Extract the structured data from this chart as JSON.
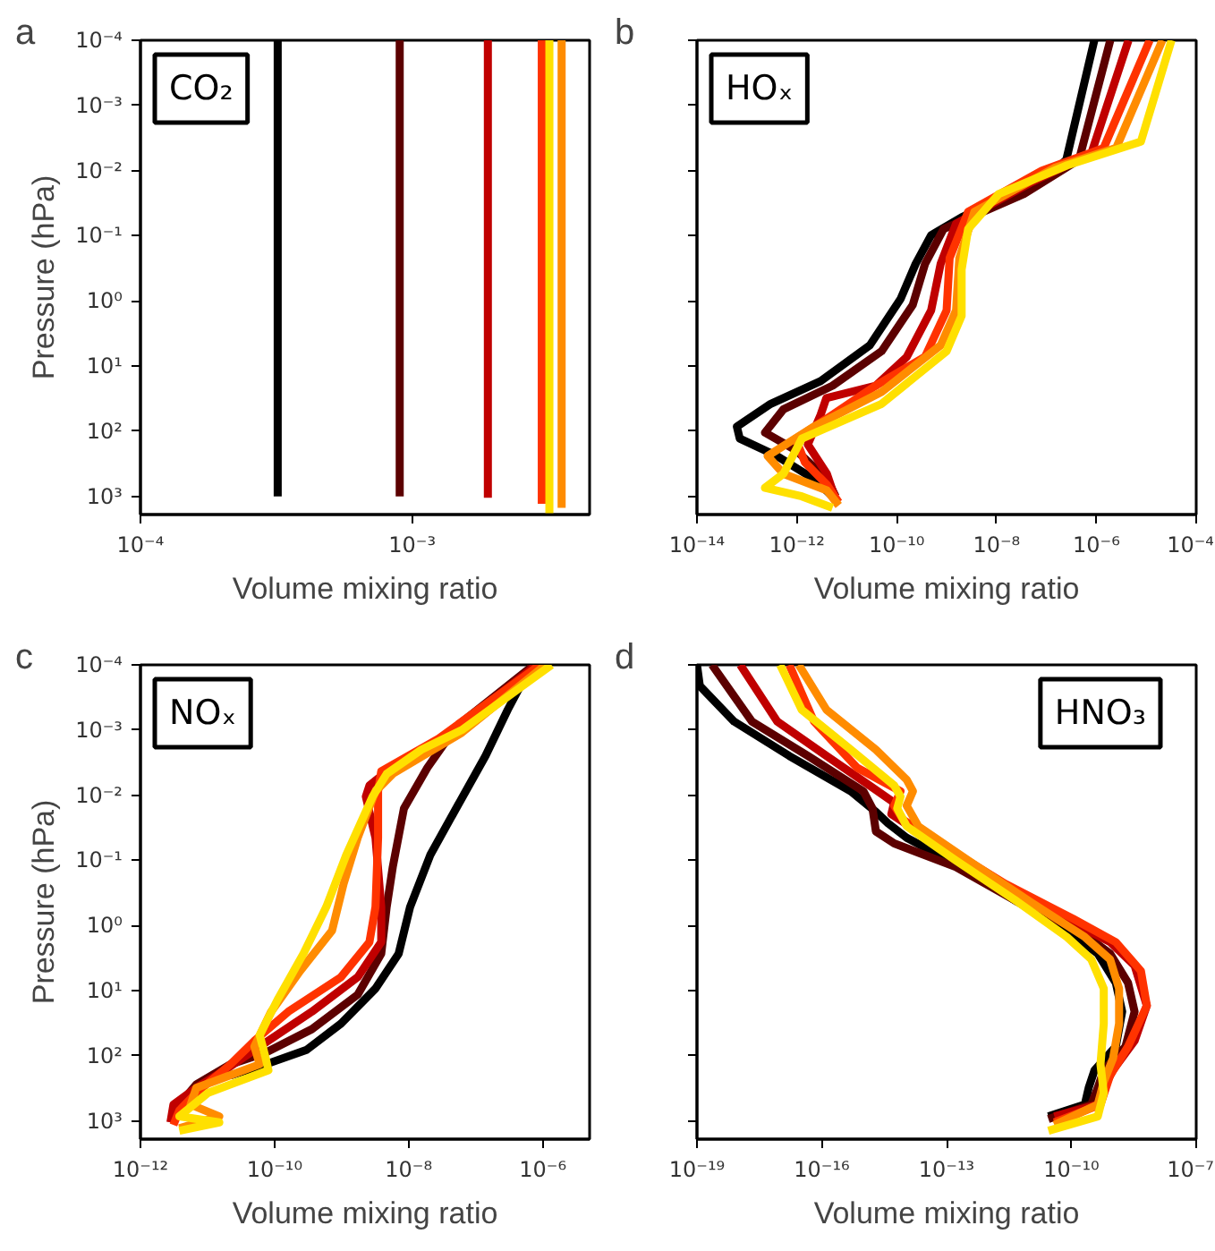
{
  "chart_data": [
    {
      "type": "line",
      "title": "CO₂",
      "annotations": [
        "a"
      ],
      "xlabel": "Volume mixing ratio",
      "ylabel": "Pressure (hPa)",
      "log": "xy",
      "xlim": [
        0.0001,
        0.0045
      ],
      "ylim": [
        1900,
        0.0001
      ],
      "xticks": [
        {
          "value": 0.0001,
          "label": "10⁻⁴"
        },
        {
          "value": 0.001,
          "label": "10⁻³"
        }
      ],
      "yticks": [
        {
          "value": 0.0001,
          "label": "10⁻⁴"
        },
        {
          "value": 0.001,
          "label": "10⁻³"
        },
        {
          "value": 0.01,
          "label": "10⁻²"
        },
        {
          "value": 0.1,
          "label": "10⁻¹"
        },
        {
          "value": 1,
          "label": "10⁰"
        },
        {
          "value": 10,
          "label": "10¹"
        },
        {
          "value": 100,
          "label": "10²"
        },
        {
          "value": 1000,
          "label": "10³"
        }
      ],
      "series": [
        {
          "color": "#000000",
          "x": [
            0.00032,
            0.00032
          ],
          "values": [
            0.0001,
            1000
          ]
        },
        {
          "color": "#5c0000",
          "x": [
            0.0009,
            0.0009
          ],
          "values": [
            0.0001,
            1000
          ]
        },
        {
          "color": "#c00000",
          "x": [
            0.0019,
            0.0019
          ],
          "values": [
            0.0001,
            1050
          ]
        },
        {
          "color": "#ff3300",
          "x": [
            0.003,
            0.003
          ],
          "values": [
            0.0001,
            1300
          ]
        },
        {
          "color": "#ff8c00",
          "x": [
            0.00355,
            0.00355
          ],
          "values": [
            0.0001,
            1500
          ]
        },
        {
          "color": "#ffe000",
          "x": [
            0.0032,
            0.0032
          ],
          "values": [
            0.0001,
            1850
          ]
        }
      ]
    },
    {
      "type": "line",
      "title": "HOₓ",
      "annotations": [
        "b"
      ],
      "xlabel": "Volume mixing ratio",
      "log": "xy",
      "xlim": [
        1e-14,
        0.0001
      ],
      "ylim": [
        1900,
        0.0001
      ],
      "tick_labels": "x",
      "xticks": [
        {
          "value": 1e-14,
          "label": "10⁻¹⁴"
        },
        {
          "value": 1e-12,
          "label": "10⁻¹²"
        },
        {
          "value": 1e-10,
          "label": "10⁻¹⁰"
        },
        {
          "value": 1e-08,
          "label": "10⁻⁸"
        },
        {
          "value": 1e-06,
          "label": "10⁻⁶"
        },
        {
          "value": 0.0001,
          "label": "10⁻⁴"
        }
      ],
      "yticks": [
        {
          "value": 0.0001,
          "label": null
        },
        {
          "value": 0.001,
          "label": null
        },
        {
          "value": 0.01,
          "label": null
        },
        {
          "value": 0.1,
          "label": null
        },
        {
          "value": 1,
          "label": null
        },
        {
          "value": 10,
          "label": null
        },
        {
          "value": 100,
          "label": null
        },
        {
          "value": 1000,
          "label": null
        }
      ],
      "series": [
        {
          "color": "#000000",
          "x": [
            9.1e-07,
            2.5e-07,
            1.45e-07,
            2.6e-08,
            1.1e-08,
            2e-09,
            4.9e-10,
            2.4e-10,
            1.2e-10,
            2.9e-11,
            3e-12,
            3e-13,
            6.3e-14,
            7.2e-14,
            4e-13,
            2.2e-12,
            5.2e-12
          ],
          "values": [
            0.0001,
            0.0068,
            0.01,
            0.025,
            0.028,
            0.052,
            0.098,
            0.27,
            0.93,
            4.8,
            17,
            38,
            85,
            130,
            240,
            540,
            1000
          ]
        },
        {
          "color": "#5c0000",
          "x": [
            1.9e-06,
            4.5e-07,
            3.5e-08,
            8.7e-10,
            3.7e-10,
            2.1e-10,
            5e-11,
            5.2e-12,
            5.4e-13,
            2.3e-13,
            9.5e-13,
            4e-12,
            6e-12
          ],
          "values": [
            0.0001,
            0.0068,
            0.023,
            0.079,
            0.27,
            1.15,
            5.9,
            20,
            46,
            105,
            195,
            540,
            1000
          ]
        },
        {
          "color": "#c00000",
          "x": [
            4.4e-06,
            7.9e-07,
            4.7e-08,
            1.55e-09,
            7.6e-10,
            4.9e-10,
            1.6e-10,
            3.8e-11,
            3.9e-12,
            3e-12,
            1.66e-12,
            4e-12,
            6e-12
          ],
          "values": [
            0.0001,
            0.0055,
            0.0155,
            0.065,
            0.27,
            1.4,
            7.2,
            20,
            31,
            56,
            160,
            450,
            1120
          ]
        },
        {
          "color": "#ff3300",
          "x": [
            1.17e-05,
            1.4e-06,
            8.1e-08,
            2.7e-09,
            1.15e-09,
            1e-09,
            3.7e-10,
            3.8e-11,
            5.2e-12,
            9.5e-13,
            1.45e-12,
            4e-12,
            6.9e-12
          ],
          "values": [
            0.0001,
            0.0045,
            0.01,
            0.043,
            0.22,
            1.4,
            7.2,
            20,
            56,
            130,
            300,
            660,
            1230
          ]
        },
        {
          "color": "#ff8c00",
          "x": [
            2.1e-05,
            2.5e-06,
            1.45e-07,
            3.6e-09,
            1.8e-09,
            1.55e-09,
            7.6e-10,
            5e-11,
            2.2e-12,
            2.6e-13,
            5.4e-13,
            4e-12,
            6.9e-12
          ],
          "values": [
            0.0001,
            0.0045,
            0.0091,
            0.043,
            0.22,
            1.4,
            4.8,
            25,
            85,
            240,
            450,
            810,
            1380
          ]
        },
        {
          "color": "#ffe000",
          "x": [
            3.2e-05,
            7.8e-06,
            2.6e-07,
            1.1e-08,
            2.7e-09,
            2e-09,
            2e-09,
            1e-09,
            5e-11,
            1.26e-12,
            5.4e-13,
            2.3e-13,
            1.26e-12,
            5.2e-12
          ],
          "values": [
            0.0001,
            0.0036,
            0.0083,
            0.023,
            0.079,
            0.33,
            1.7,
            5.9,
            38,
            130,
            450,
            740,
            1000,
            1500
          ]
        }
      ]
    },
    {
      "type": "line",
      "title": "NOₓ",
      "annotations": [
        "c"
      ],
      "xlabel": "Volume mixing ratio",
      "ylabel": "Pressure (hPa)",
      "log": "xy",
      "xlim": [
        1e-12,
        5e-06
      ],
      "ylim": [
        1900,
        0.0001
      ],
      "xticks": [
        {
          "value": 1e-12,
          "label": "10⁻¹²"
        },
        {
          "value": 1e-10,
          "label": "10⁻¹⁰"
        },
        {
          "value": 1e-08,
          "label": "10⁻⁸"
        },
        {
          "value": 1e-06,
          "label": "10⁻⁶"
        }
      ],
      "yticks": [
        {
          "value": 0.0001,
          "label": "10⁻⁴"
        },
        {
          "value": 0.001,
          "label": "10⁻³"
        },
        {
          "value": 0.01,
          "label": "10⁻²"
        },
        {
          "value": 0.1,
          "label": "10⁻¹"
        },
        {
          "value": 1,
          "label": "10⁰"
        },
        {
          "value": 10,
          "label": "10¹"
        },
        {
          "value": 100,
          "label": "10²"
        },
        {
          "value": 1000,
          "label": "10³"
        }
      ],
      "series": [
        {
          "color": "#000000",
          "x": [
            6.8e-07,
            3e-07,
            1.4e-07,
            5.1e-08,
            2.1e-08,
            1.05e-08,
            7.1e-09,
            3.2e-09,
            9.8e-10,
            3e-10,
            7.4e-11,
            2.2e-11
          ],
          "values": [
            0.0001,
            0.00049,
            0.0025,
            0.016,
            0.083,
            0.52,
            2.7,
            9.3,
            32,
            81,
            135,
            200
          ]
        },
        {
          "color": "#5c0000",
          "x": [
            7.4e-07,
            5.1e-08,
            1.9e-08,
            8.5e-09,
            5.8e-09,
            4.7e-09,
            3.9e-09,
            1.74e-09,
            3.6e-10,
            7.4e-11,
            2.2e-11,
            6.8e-12,
            3.8e-12,
            3.1e-12
          ],
          "values": [
            0.0001,
            0.00089,
            0.0038,
            0.016,
            0.126,
            0.52,
            2.7,
            11.5,
            39,
            89,
            135,
            275,
            560,
            1050
          ]
        },
        {
          "color": "#c00000",
          "x": [
            8.1e-07,
            4.2e-08,
            7.1e-09,
            2.6e-09,
            2.3e-09,
            3.2e-09,
            3.9e-09,
            3.9e-09,
            1.74e-09,
            3.6e-10,
            6e-11,
            1.9e-11,
            6.8e-12,
            3.1e-12,
            2.8e-12
          ],
          "values": [
            0.0001,
            0.0011,
            0.0031,
            0.0071,
            0.0105,
            0.045,
            0.52,
            1.8,
            6.2,
            21,
            72,
            160,
            310,
            560,
            1050
          ]
        },
        {
          "color": "#ff3300",
          "x": [
            9.1e-07,
            2.8e-08,
            3.9e-09,
            3.5e-09,
            3.5e-09,
            3.2e-09,
            2.6e-09,
            9.8e-10,
            1.6e-10,
            5e-11,
            2.2e-11,
            6.8e-12,
            3.8e-12,
            3.1e-12
          ],
          "values": [
            0.0001,
            0.00135,
            0.0043,
            0.0087,
            0.045,
            0.52,
            1.8,
            6.2,
            21,
            59,
            135,
            370,
            690,
            1150
          ]
        },
        {
          "color": "#ff8c00",
          "x": [
            1.1e-06,
            6.2e-08,
            5.8e-09,
            3.2e-09,
            1.74e-09,
            1.07e-09,
            7.2e-10,
            2.4e-10,
            8.9e-11,
            5e-11,
            6e-11,
            6.8e-12,
            5.6e-12,
            1.5e-11,
            3.8e-12
          ],
          "values": [
            0.0001,
            0.0011,
            0.0047,
            0.0087,
            0.045,
            0.23,
            1.2,
            5.0,
            21,
            72,
            135,
            310,
            560,
            850,
            1290
          ]
        },
        {
          "color": "#ffe000",
          "x": [
            1.35e-06,
            6.2e-08,
            1.55e-08,
            4.7e-09,
            2.9e-09,
            1.17e-09,
            5.9e-10,
            2.7e-10,
            1.1e-10,
            6e-11,
            7.4e-11,
            8.1e-11,
            1.02e-11,
            3.8e-12,
            1.5e-11,
            3.8e-12
          ],
          "values": [
            0.0001,
            0.001,
            0.002,
            0.0047,
            0.0105,
            0.083,
            0.52,
            2.7,
            14,
            48,
            110,
            166,
            370,
            850,
            1050,
            1410
          ]
        }
      ]
    },
    {
      "type": "line",
      "title": "HNO₃",
      "annotations": [
        "d"
      ],
      "xlabel": "Volume mixing ratio",
      "log": "xy",
      "xlim": [
        1e-19,
        1e-07
      ],
      "ylim": [
        1900,
        0.0001
      ],
      "tick_labels": "x",
      "xticks": [
        {
          "value": 1e-19,
          "label": "10⁻¹⁹"
        },
        {
          "value": 1e-16,
          "label": "10⁻¹⁶"
        },
        {
          "value": 1e-13,
          "label": "10⁻¹³"
        },
        {
          "value": 1e-10,
          "label": "10⁻¹⁰"
        },
        {
          "value": 1e-07,
          "label": "10⁻⁷"
        }
      ],
      "yticks": [
        {
          "value": 0.0001,
          "label": null
        },
        {
          "value": 0.001,
          "label": null
        },
        {
          "value": 0.01,
          "label": null
        },
        {
          "value": 0.1,
          "label": null
        },
        {
          "value": 1,
          "label": null
        },
        {
          "value": 10,
          "label": null
        },
        {
          "value": 100,
          "label": null
        },
        {
          "value": 1000,
          "label": null
        }
      ],
      "series": [
        {
          "color": "#000000",
          "x": [
            1e-19,
            1.17e-19,
            7.8e-19,
            1.66e-17,
            5e-16,
            2e-15,
            3.9e-15,
            1.1e-14,
            2.3e-13,
            5e-12,
            7.8e-11,
            4.3e-10,
            1.17e-09,
            1.66e-09,
            1.17e-09,
            3.6e-10,
            2.6e-10,
            2.1e-10,
            2.8e-11
          ],
          "values": [
            0.0001,
            0.00021,
            0.00074,
            0.0025,
            0.0087,
            0.018,
            0.027,
            0.045,
            0.126,
            0.43,
            1.2,
            2.7,
            7.6,
            21,
            72,
            166,
            310,
            560,
            850
          ]
        },
        {
          "color": "#5c0000",
          "x": [
            2.3e-19,
            2.1e-18,
            4.7e-17,
            1e-15,
            1.66e-15,
            2e-15,
            5.5e-15,
            1.66e-13,
            5e-12,
            1.55e-10,
            8.5e-10,
            2.3e-09,
            3.3e-09,
            2e-09,
            6e-10,
            4.3e-10,
            3e-10,
            2.8e-11
          ],
          "values": [
            0.0001,
            0.00074,
            0.0025,
            0.0087,
            0.016,
            0.036,
            0.055,
            0.126,
            0.43,
            1.2,
            2.7,
            7.6,
            21,
            72,
            166,
            310,
            560,
            930
          ]
        },
        {
          "color": "#c00000",
          "x": [
            1.1e-18,
            8.5e-18,
            1.3e-16,
            1.4e-15,
            5.5e-15,
            4.7e-15,
            8.5e-14,
            1.8e-12,
            3.9e-11,
            8.5e-10,
            3.3e-09,
            6.5e-09,
            3.3e-09,
            1e-09,
            6e-10,
            4.3e-10,
            3.9e-11
          ],
          "values": [
            0.0001,
            0.00074,
            0.0025,
            0.0071,
            0.013,
            0.0195,
            0.068,
            0.23,
            0.65,
            1.8,
            4.1,
            17,
            59,
            166,
            310,
            560,
            850
          ]
        },
        {
          "color": "#ff3300",
          "x": [
            1.66e-17,
            6.5e-17,
            7.1e-16,
            7.8e-15,
            5.5e-15,
            9.1e-15,
            1.17e-13,
            2.6e-12,
            1.1e-10,
            1.17e-09,
            4.7e-09,
            6.5e-09,
            2.3e-09,
            8.5e-10,
            5e-10,
            3.9e-11
          ],
          "values": [
            0.0001,
            0.00074,
            0.0038,
            0.0087,
            0.0145,
            0.024,
            0.068,
            0.23,
            0.79,
            1.8,
            5.0,
            17,
            72,
            200,
            560,
            1050
          ]
        },
        {
          "color": "#ff8c00",
          "x": [
            2.8e-17,
            1.3e-16,
            2e-15,
            1.1e-14,
            1.55e-14,
            1.1e-14,
            2.1e-14,
            3.3e-13,
            1e-11,
            2.1e-10,
            8.5e-10,
            1.4e-09,
            1.4e-09,
            1e-09,
            6e-10,
            4.3e-10,
            3.9e-11
          ],
          "values": [
            0.0001,
            0.00049,
            0.002,
            0.0058,
            0.0087,
            0.0145,
            0.03,
            0.1,
            0.43,
            1.5,
            3.3,
            9.3,
            32,
            110,
            250,
            560,
            1150
          ]
        },
        {
          "color": "#ffe000",
          "x": [
            1e-17,
            3.3e-17,
            5e-16,
            5.5e-15,
            7.8e-15,
            6.5e-15,
            1.1e-14,
            1.66e-13,
            5e-12,
            7.8e-11,
            3e-10,
            6e-10,
            6e-10,
            5e-10,
            6e-10,
            4.3e-10,
            2.8e-11
          ],
          "values": [
            0.0001,
            0.00049,
            0.002,
            0.0071,
            0.0105,
            0.016,
            0.03,
            0.1,
            0.43,
            1.5,
            3.3,
            9.3,
            32,
            135,
            370,
            850,
            1410
          ]
        }
      ]
    }
  ]
}
